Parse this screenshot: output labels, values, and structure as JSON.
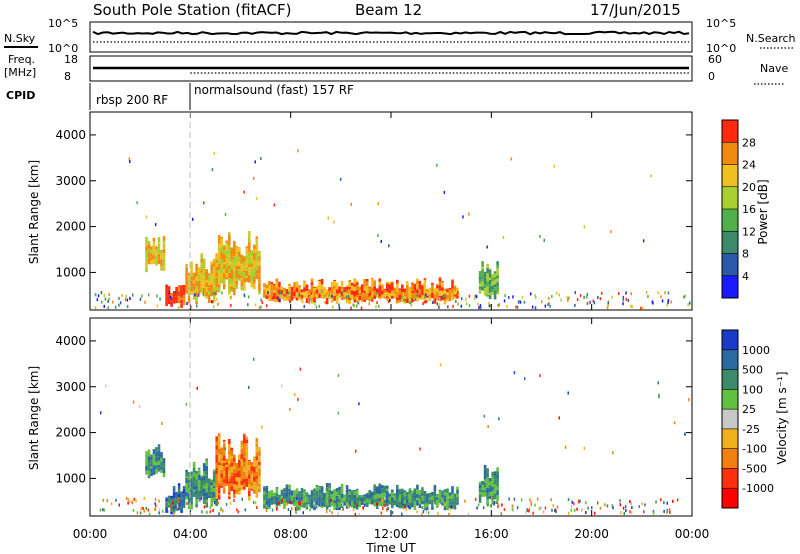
{
  "header": {
    "station": "South Pole Station (fitACF)",
    "beam": "Beam 12",
    "date": "17/Jun/2015"
  },
  "summary_panels": {
    "nsky_label": "N.Sky",
    "nsearch_label": "N.Search",
    "nsky_ticks": [
      "10^5",
      "10^0"
    ],
    "nsearch_ticks": [
      "10^5",
      "10^0"
    ],
    "freq_label_1": "Freq.",
    "freq_label_2": "[MHz]",
    "freq_ticks": [
      "18",
      "8"
    ],
    "nave_label": "Nave",
    "nave_ticks": [
      "60",
      "0"
    ],
    "cpid_label": "CPID",
    "cpid_segments": [
      {
        "label": "rbsp 200 RF",
        "start_h": 0,
        "end_h": 4
      },
      {
        "label": "normalsound (fast) 157 RF",
        "start_h": 4,
        "end_h": 24
      }
    ]
  },
  "time_axis": {
    "label": "Time UT",
    "ticks": [
      "00:00",
      "04:00",
      "08:00",
      "12:00",
      "16:00",
      "20:00",
      "00:00"
    ],
    "range_h": [
      0,
      24
    ]
  },
  "chart_data": [
    {
      "type": "heatmap",
      "name": "power",
      "ylabel": "Slant Range [km]",
      "yticks": [
        "1000",
        "2000",
        "3000",
        "4000"
      ],
      "ylim": [
        180,
        4500
      ],
      "colorbar_label": "Power [dB]",
      "colorbar_ticks": [
        "4",
        "8",
        "12",
        "16",
        "20",
        "24",
        "28"
      ],
      "colorbar_colors": [
        "#1a1aff",
        "#2a5aa8",
        "#3c8a6a",
        "#50b04a",
        "#a8d030",
        "#f0c020",
        "#f08a10",
        "#ff2a10"
      ],
      "regions": [
        {
          "t0": 2.2,
          "t1": 3.0,
          "r0": 1000,
          "r1": 1800,
          "level": 5
        },
        {
          "t0": 3.0,
          "t1": 3.8,
          "r0": 200,
          "r1": 800,
          "level": 7
        },
        {
          "t0": 3.8,
          "t1": 5.0,
          "r0": 300,
          "r1": 1500,
          "level": 5
        },
        {
          "t0": 5.0,
          "t1": 6.7,
          "r0": 500,
          "r1": 2000,
          "level": 5
        },
        {
          "t0": 6.9,
          "t1": 14.6,
          "r0": 300,
          "r1": 900,
          "level": 6
        },
        {
          "t0": 15.5,
          "t1": 16.3,
          "r0": 400,
          "r1": 1300,
          "level": 3
        }
      ]
    },
    {
      "type": "heatmap",
      "name": "velocity",
      "ylabel": "Slant Range [km]",
      "yticks": [
        "1000",
        "2000",
        "3000",
        "4000"
      ],
      "ylim": [
        180,
        4500
      ],
      "colorbar_label": "Velocity [m s⁻¹]",
      "colorbar_ticks": [
        "1000",
        "500",
        "100",
        "25",
        "-25",
        "-100",
        "-500",
        "-1000"
      ],
      "colorbar_colors": [
        "#1a3ac8",
        "#2a6aa0",
        "#3c8a6a",
        "#60c040",
        "#c8c8c8",
        "#f0b020",
        "#f08010",
        "#ff3010",
        "#ff0000"
      ],
      "regions": [
        {
          "t0": 2.2,
          "t1": 3.0,
          "r0": 1000,
          "r1": 1800,
          "level": 2
        },
        {
          "t0": 3.0,
          "t1": 3.8,
          "r0": 200,
          "r1": 900,
          "level": 1
        },
        {
          "t0": 3.8,
          "t1": 5.0,
          "r0": 300,
          "r1": 1500,
          "level": 2
        },
        {
          "t0": 5.0,
          "t1": 6.7,
          "r0": 500,
          "r1": 2000,
          "level": 6
        },
        {
          "t0": 6.9,
          "t1": 14.6,
          "r0": 300,
          "r1": 900,
          "level": 2
        },
        {
          "t0": 15.5,
          "t1": 16.3,
          "r0": 400,
          "r1": 1300,
          "level": 2
        }
      ]
    }
  ]
}
